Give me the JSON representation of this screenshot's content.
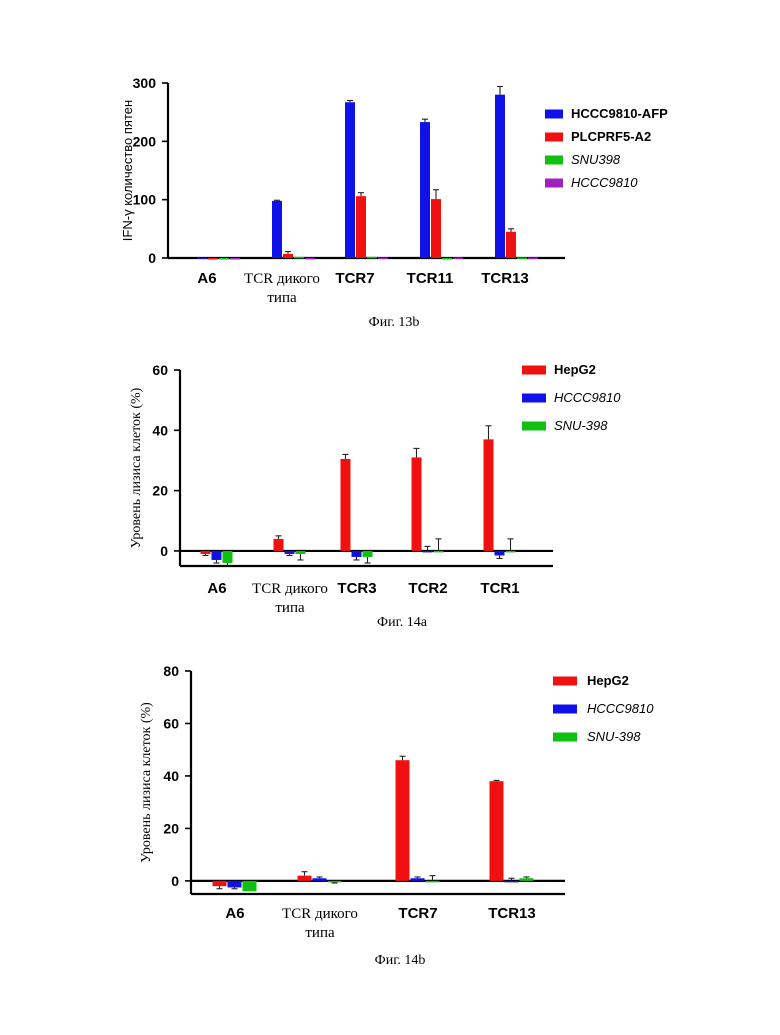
{
  "chart_data": [
    {
      "type": "bar",
      "caption": "Фиг. 13b",
      "ylabel": "IFN-γ количество пятен",
      "ylim": [
        0,
        300
      ],
      "yticks": [
        0,
        100,
        200,
        300
      ],
      "categories": [
        "A6",
        "TCR  дикого\nтипа",
        "TCR7",
        "TCR11",
        "TCR13"
      ],
      "series": [
        {
          "name": "HCCC9810-AFP",
          "color": "#1010e8",
          "values": [
            1,
            98,
            267,
            233,
            280
          ],
          "errors": [
            0,
            1,
            3,
            5,
            14
          ]
        },
        {
          "name": "PLCPRF5-A2",
          "color": "#f01010",
          "values": [
            0,
            7,
            106,
            101,
            45
          ],
          "errors": [
            0,
            4,
            6,
            16,
            5
          ]
        },
        {
          "name": "SNU398",
          "color": "#10c010",
          "values": [
            0,
            2,
            2,
            0,
            1
          ],
          "errors": [
            0,
            0,
            0,
            0,
            0
          ]
        },
        {
          "name": "HCCC9810",
          "color": "#a020c0",
          "values": [
            0,
            0,
            1,
            1,
            1
          ],
          "errors": [
            0,
            0,
            0,
            0,
            0
          ]
        }
      ],
      "legend_styles": [
        "bold",
        "bold",
        "italic",
        "italic"
      ]
    },
    {
      "type": "bar",
      "caption": "Фиг. 14a",
      "ylabel": "Уровень лизиса клеток (%)",
      "ylim": [
        -5,
        60
      ],
      "yticks": [
        0,
        20,
        40,
        60
      ],
      "categories": [
        "A6",
        "TCR  дикого\nтипа",
        "TCR3",
        "TCR2",
        "TCR1"
      ],
      "series": [
        {
          "name": "HepG2",
          "color": "#f01010",
          "values": [
            -1,
            4,
            30.5,
            31,
            37
          ],
          "errors": [
            0.5,
            1,
            1.5,
            3,
            4.5
          ]
        },
        {
          "name": "HCCC9810",
          "color": "#1010e8",
          "values": [
            -3,
            -1,
            -2,
            0,
            -1.5
          ],
          "errors": [
            1,
            0.5,
            1,
            1.5,
            1
          ]
        },
        {
          "name": "SNU-398",
          "color": "#10c010",
          "values": [
            -4,
            -1,
            -2,
            0,
            0
          ],
          "errors": [
            1,
            2,
            2,
            4,
            4
          ]
        }
      ],
      "legend_styles": [
        "bold",
        "italic",
        "italic"
      ]
    },
    {
      "type": "bar",
      "caption": "Фиг. 14b",
      "ylabel": "Уровень лизиса клеток (%)",
      "ylim": [
        -5,
        80
      ],
      "yticks": [
        0,
        20,
        40,
        60,
        80
      ],
      "categories": [
        "A6",
        "TCR  дикого\nтипа",
        "TCR7",
        "TCR13"
      ],
      "series": [
        {
          "name": "HepG2",
          "color": "#f01010",
          "values": [
            -2,
            2,
            46,
            38
          ],
          "errors": [
            1,
            1.5,
            1.5,
            0.3
          ]
        },
        {
          "name": "HCCC9810",
          "color": "#1010e8",
          "values": [
            -2.5,
            1,
            1,
            0
          ],
          "errors": [
            0.5,
            0.5,
            0.5,
            1
          ]
        },
        {
          "name": "SNU-398",
          "color": "#10c010",
          "values": [
            -4,
            -0.5,
            0,
            1
          ],
          "errors": [
            0,
            0.3,
            2,
            0.5
          ]
        }
      ],
      "legend_styles": [
        "bold",
        "italic",
        "italic"
      ]
    }
  ]
}
